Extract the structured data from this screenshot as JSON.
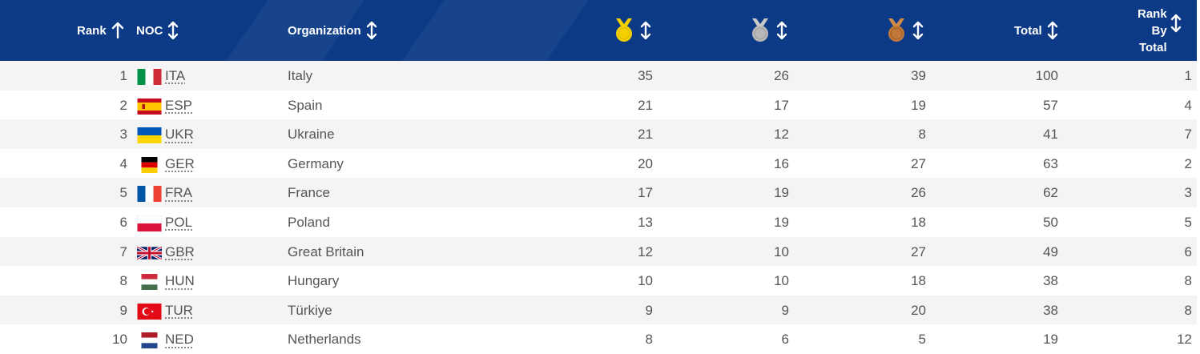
{
  "header": {
    "rank": "Rank",
    "noc": "NOC",
    "organization": "Organization",
    "gold_icon": "gold-medal-icon",
    "silver_icon": "silver-medal-icon",
    "bronze_icon": "bronze-medal-icon",
    "total": "Total",
    "rank_by_total": "Rank\nBy\nTotal"
  },
  "colors": {
    "header_bg": "#0c3a86",
    "gold": "#f5d000",
    "silver": "#b8b8b8",
    "bronze": "#c0783a",
    "row_alt": "#f4f4f4"
  },
  "rows": [
    {
      "rank": "1",
      "noc": "ITA",
      "org": "Italy",
      "gold": "35",
      "silver": "26",
      "bronze": "39",
      "total": "100",
      "rank_total": "1",
      "flag": "italy-flag-icon"
    },
    {
      "rank": "2",
      "noc": "ESP",
      "org": "Spain",
      "gold": "21",
      "silver": "17",
      "bronze": "19",
      "total": "57",
      "rank_total": "4",
      "flag": "spain-flag-icon"
    },
    {
      "rank": "3",
      "noc": "UKR",
      "org": "Ukraine",
      "gold": "21",
      "silver": "12",
      "bronze": "8",
      "total": "41",
      "rank_total": "7",
      "flag": "ukraine-flag-icon"
    },
    {
      "rank": "4",
      "noc": "GER",
      "org": "Germany",
      "gold": "20",
      "silver": "16",
      "bronze": "27",
      "total": "63",
      "rank_total": "2",
      "flag": "germany-flag-icon"
    },
    {
      "rank": "5",
      "noc": "FRA",
      "org": "France",
      "gold": "17",
      "silver": "19",
      "bronze": "26",
      "total": "62",
      "rank_total": "3",
      "flag": "france-flag-icon"
    },
    {
      "rank": "6",
      "noc": "POL",
      "org": "Poland",
      "gold": "13",
      "silver": "19",
      "bronze": "18",
      "total": "50",
      "rank_total": "5",
      "flag": "poland-flag-icon"
    },
    {
      "rank": "7",
      "noc": "GBR",
      "org": "Great Britain",
      "gold": "12",
      "silver": "10",
      "bronze": "27",
      "total": "49",
      "rank_total": "6",
      "flag": "great-britain-flag-icon"
    },
    {
      "rank": "8",
      "noc": "HUN",
      "org": "Hungary",
      "gold": "10",
      "silver": "10",
      "bronze": "18",
      "total": "38",
      "rank_total": "8",
      "flag": "hungary-flag-icon"
    },
    {
      "rank": "9",
      "noc": "TUR",
      "org": "Türkiye",
      "gold": "9",
      "silver": "9",
      "bronze": "20",
      "total": "38",
      "rank_total": "8",
      "flag": "turkiye-flag-icon"
    },
    {
      "rank": "10",
      "noc": "NED",
      "org": "Netherlands",
      "gold": "8",
      "silver": "6",
      "bronze": "5",
      "total": "19",
      "rank_total": "12",
      "flag": "netherlands-flag-icon"
    }
  ]
}
